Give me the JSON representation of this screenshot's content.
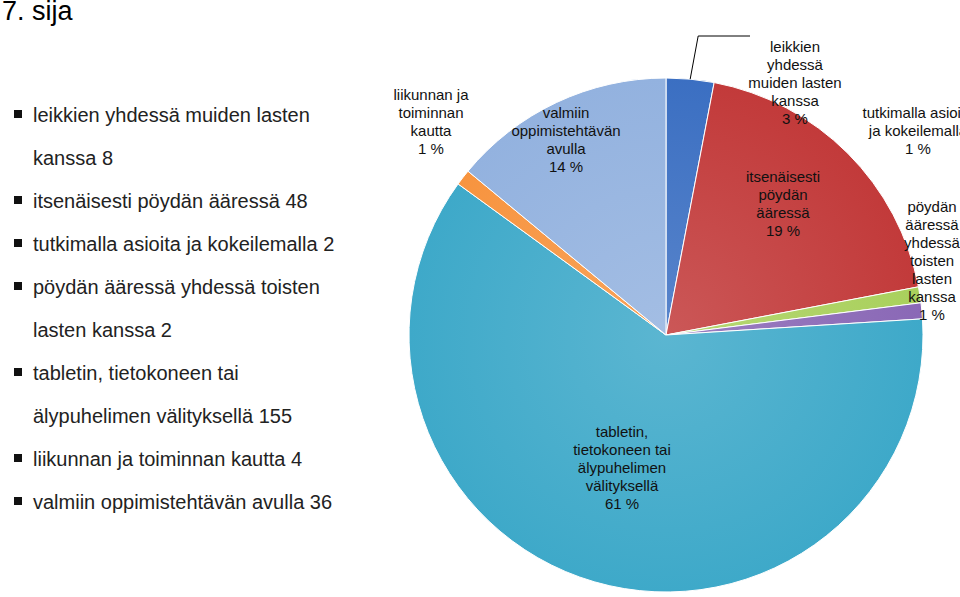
{
  "chart_data": {
    "type": "pie",
    "title": "7. sija",
    "categories": [
      "leikkien yhdessä muiden lasten kanssa",
      "itsenäisesti pöydän ääressä",
      "tutkimalla asioita ja kokeilemalla",
      "pöydän ääressä yhdessä toisten lasten kanssa",
      "tabletin, tietokoneen tai älypuhelimen välityksellä",
      "liikunnan ja toiminnan kautta",
      "valmiin oppimistehtävän avulla"
    ],
    "values": [
      3,
      19,
      1,
      1,
      61,
      1,
      14
    ],
    "value_labels": [
      "3 %",
      "19 %",
      "1 %",
      "1 %",
      "61 %",
      "1 %",
      "14 %"
    ],
    "counts": [
      8,
      48,
      2,
      2,
      155,
      4,
      36
    ],
    "colors": [
      "#3b6fc2",
      "#c23a3a",
      "#a9d05c",
      "#8a68b6",
      "#3ea9c9",
      "#f7943f",
      "#93b2df"
    ],
    "data_labels": true
  }
}
